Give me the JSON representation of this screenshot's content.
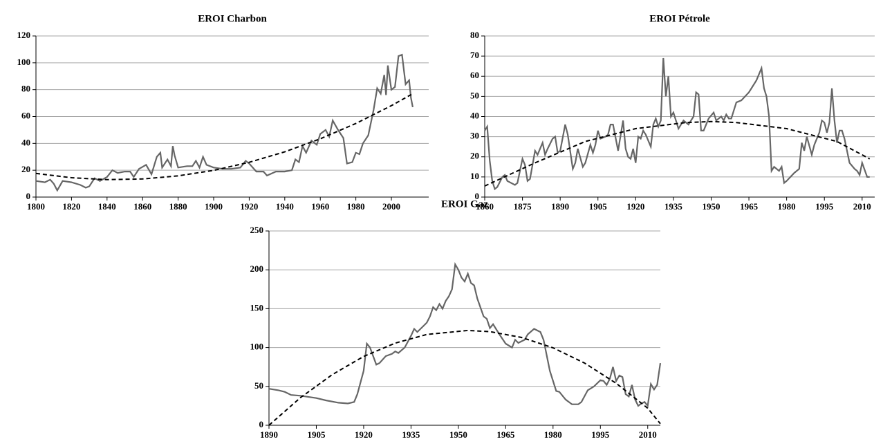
{
  "chart_data": [
    {
      "type": "line",
      "title": "EROI Charbon",
      "xlim": [
        1800,
        2021
      ],
      "xticks": [
        1800,
        1820,
        1840,
        1860,
        1880,
        1900,
        1920,
        1940,
        1960,
        1980,
        2000
      ],
      "ylim": [
        0,
        120
      ],
      "yticks": [
        0,
        20,
        40,
        60,
        80,
        100,
        120
      ],
      "grid": true,
      "series": [
        {
          "color": "#666666",
          "x": [
            1800,
            1805,
            1808,
            1810,
            1812,
            1815,
            1820,
            1825,
            1828,
            1830,
            1833,
            1836,
            1840,
            1843,
            1846,
            1850,
            1853,
            1855,
            1858,
            1862,
            1865,
            1868,
            1870,
            1871,
            1874,
            1876,
            1877,
            1878,
            1880,
            1885,
            1888,
            1890,
            1892,
            1894,
            1896,
            1900,
            1905,
            1910,
            1915,
            1918,
            1920,
            1924,
            1928,
            1930,
            1935,
            1940,
            1944,
            1946,
            1948,
            1950,
            1952,
            1955,
            1958,
            1960,
            1963,
            1965,
            1967,
            1970,
            1973,
            1975,
            1978,
            1980,
            1982,
            1984,
            1987,
            1990,
            1992,
            1994,
            1996,
            1997,
            1998,
            2000,
            2002,
            2004,
            2006,
            2008,
            2010,
            2011,
            2012
          ],
          "values": [
            12,
            11,
            13,
            10,
            5,
            12,
            11,
            9,
            7,
            8,
            14,
            12,
            15,
            20,
            18,
            19,
            19,
            15,
            21,
            24,
            17,
            30,
            33,
            22,
            28,
            23,
            38,
            31,
            22,
            23,
            23,
            27,
            22,
            30,
            24,
            22,
            21,
            21,
            22,
            27,
            25,
            19,
            19,
            16,
            19,
            19,
            20,
            28,
            26,
            38,
            33,
            42,
            39,
            47,
            50,
            45,
            57,
            50,
            44,
            25,
            26,
            33,
            32,
            40,
            46,
            65,
            81,
            77,
            91,
            76,
            98,
            80,
            82,
            105,
            106,
            84,
            87,
            74,
            67
          ]
        },
        {
          "color": "#000000",
          "dash": true,
          "x": [
            1800,
            1820,
            1840,
            1860,
            1880,
            1900,
            1920,
            1940,
            1960,
            1980,
            2000,
            2012
          ],
          "values": [
            17.6,
            14.4,
            13,
            13.5,
            15.8,
            19.9,
            25.9,
            33.7,
            43.4,
            54.8,
            68.1,
            77
          ]
        }
      ]
    },
    {
      "type": "line",
      "title": "EROI Pétrole",
      "xlim": [
        1860,
        2015
      ],
      "xticks": [
        1860,
        1875,
        1890,
        1905,
        1920,
        1935,
        1950,
        1965,
        1980,
        1995,
        2010
      ],
      "ylim": [
        0,
        80
      ],
      "yticks": [
        0,
        10,
        20,
        30,
        40,
        50,
        60,
        70,
        80
      ],
      "grid": true,
      "series": [
        {
          "color": "#666666",
          "x": [
            1860,
            1861,
            1862,
            1863,
            1864,
            1865,
            1867,
            1868,
            1869,
            1872,
            1873,
            1875,
            1876,
            1877,
            1878,
            1880,
            1881,
            1883,
            1884,
            1885,
            1887,
            1888,
            1889,
            1890,
            1892,
            1893,
            1895,
            1896,
            1897,
            1899,
            1900,
            1902,
            1903,
            1904,
            1905,
            1906,
            1908,
            1909,
            1910,
            1911,
            1913,
            1915,
            1916,
            1917,
            1918,
            1919,
            1920,
            1921,
            1922,
            1923,
            1924,
            1926,
            1927,
            1928,
            1929,
            1930,
            1931,
            1932,
            1933,
            1934,
            1935,
            1937,
            1939,
            1941,
            1943,
            1944,
            1945,
            1946,
            1947,
            1949,
            1951,
            1952,
            1954,
            1955,
            1956,
            1957,
            1958,
            1960,
            1962,
            1965,
            1968,
            1970,
            1971,
            1972,
            1973,
            1974,
            1975,
            1977,
            1978,
            1979,
            1980,
            1983,
            1985,
            1986,
            1987,
            1988,
            1990,
            1991,
            1993,
            1994,
            1995,
            1996,
            1997,
            1998,
            1999,
            2000,
            2001,
            2002,
            2003,
            2005,
            2007,
            2008,
            2009,
            2010,
            2012,
            2013
          ],
          "values": [
            33,
            35,
            18,
            8,
            4,
            5,
            10,
            11,
            8,
            6,
            7,
            19,
            16,
            8,
            9,
            23,
            21,
            27,
            21,
            24,
            29,
            30,
            22,
            23,
            36,
            31,
            14,
            17,
            24,
            15,
            17,
            26,
            22,
            26,
            33,
            29,
            30,
            31,
            36,
            36,
            23,
            38,
            24,
            20,
            19,
            24,
            17,
            30,
            29,
            33,
            31,
            25,
            36,
            39,
            35,
            38,
            69,
            50,
            60,
            40,
            42,
            34,
            38,
            36,
            40,
            52,
            51,
            33,
            33,
            39,
            42,
            38,
            40,
            38,
            41,
            39,
            39,
            47,
            48,
            52,
            58,
            64,
            54,
            50,
            40,
            13,
            15,
            13,
            15,
            7,
            8,
            12,
            14,
            27,
            23,
            30,
            21,
            26,
            32,
            38,
            37,
            32,
            37,
            54,
            38,
            27,
            33,
            33,
            29,
            17,
            14,
            13,
            11,
            17,
            10,
            10
          ]
        },
        {
          "color": "#000000",
          "dash": true,
          "x": [
            1860,
            1880,
            1900,
            1920,
            1940,
            1950,
            1960,
            1980,
            2000,
            2013
          ],
          "values": [
            5.5,
            17,
            27.6,
            34,
            37,
            37.5,
            37,
            34,
            27.6,
            19
          ]
        }
      ]
    },
    {
      "type": "line",
      "title": "EROI Gaz",
      "xlim": [
        1890,
        2014
      ],
      "xticks": [
        1890,
        1905,
        1920,
        1935,
        1950,
        1965,
        1980,
        1995,
        2010
      ],
      "ylim": [
        0,
        250
      ],
      "yticks": [
        0,
        50,
        100,
        150,
        200,
        250
      ],
      "grid": true,
      "series": [
        {
          "color": "#666666",
          "x": [
            1890,
            1893,
            1895,
            1897,
            1900,
            1905,
            1908,
            1912,
            1915,
            1917,
            1918,
            1920,
            1921,
            1922,
            1924,
            1925,
            1927,
            1929,
            1930,
            1931,
            1933,
            1935,
            1936,
            1937,
            1939,
            1940,
            1941,
            1942,
            1943,
            1944,
            1945,
            1946,
            1947,
            1948,
            1949,
            1950,
            1951,
            1952,
            1953,
            1954,
            1955,
            1956,
            1958,
            1959,
            1960,
            1961,
            1963,
            1965,
            1967,
            1968,
            1969,
            1971,
            1972,
            1974,
            1976,
            1977,
            1979,
            1981,
            1982,
            1984,
            1986,
            1988,
            1989,
            1991,
            1993,
            1995,
            1996,
            1997,
            1998,
            1999,
            2000,
            2001,
            2002,
            2003,
            2004,
            2005,
            2006,
            2007,
            2008,
            2009,
            2010,
            2011,
            2012,
            2013,
            2014
          ],
          "values": [
            47,
            45,
            43,
            39,
            38,
            35,
            32,
            29,
            28,
            30,
            40,
            70,
            105,
            100,
            78,
            80,
            89,
            92,
            95,
            93,
            100,
            115,
            124,
            120,
            128,
            132,
            140,
            152,
            148,
            156,
            150,
            160,
            166,
            175,
            207,
            200,
            190,
            185,
            195,
            183,
            180,
            163,
            140,
            137,
            125,
            130,
            117,
            105,
            100,
            110,
            106,
            110,
            117,
            124,
            120,
            110,
            70,
            44,
            43,
            33,
            27,
            27,
            30,
            45,
            50,
            58,
            57,
            52,
            60,
            75,
            57,
            64,
            62,
            40,
            37,
            52,
            33,
            25,
            28,
            30,
            25,
            53,
            46,
            52,
            80
          ]
        },
        {
          "color": "#000000",
          "dash": true,
          "x": [
            1890,
            1900,
            1910,
            1920,
            1930,
            1940,
            1953,
            1960,
            1970,
            1980,
            1990,
            2000,
            2010,
            2014
          ],
          "values": [
            0,
            35.6,
            65,
            88.5,
            105.7,
            116.8,
            122,
            120.5,
            113,
            99.6,
            80,
            54,
            22,
            2
          ]
        }
      ]
    }
  ]
}
